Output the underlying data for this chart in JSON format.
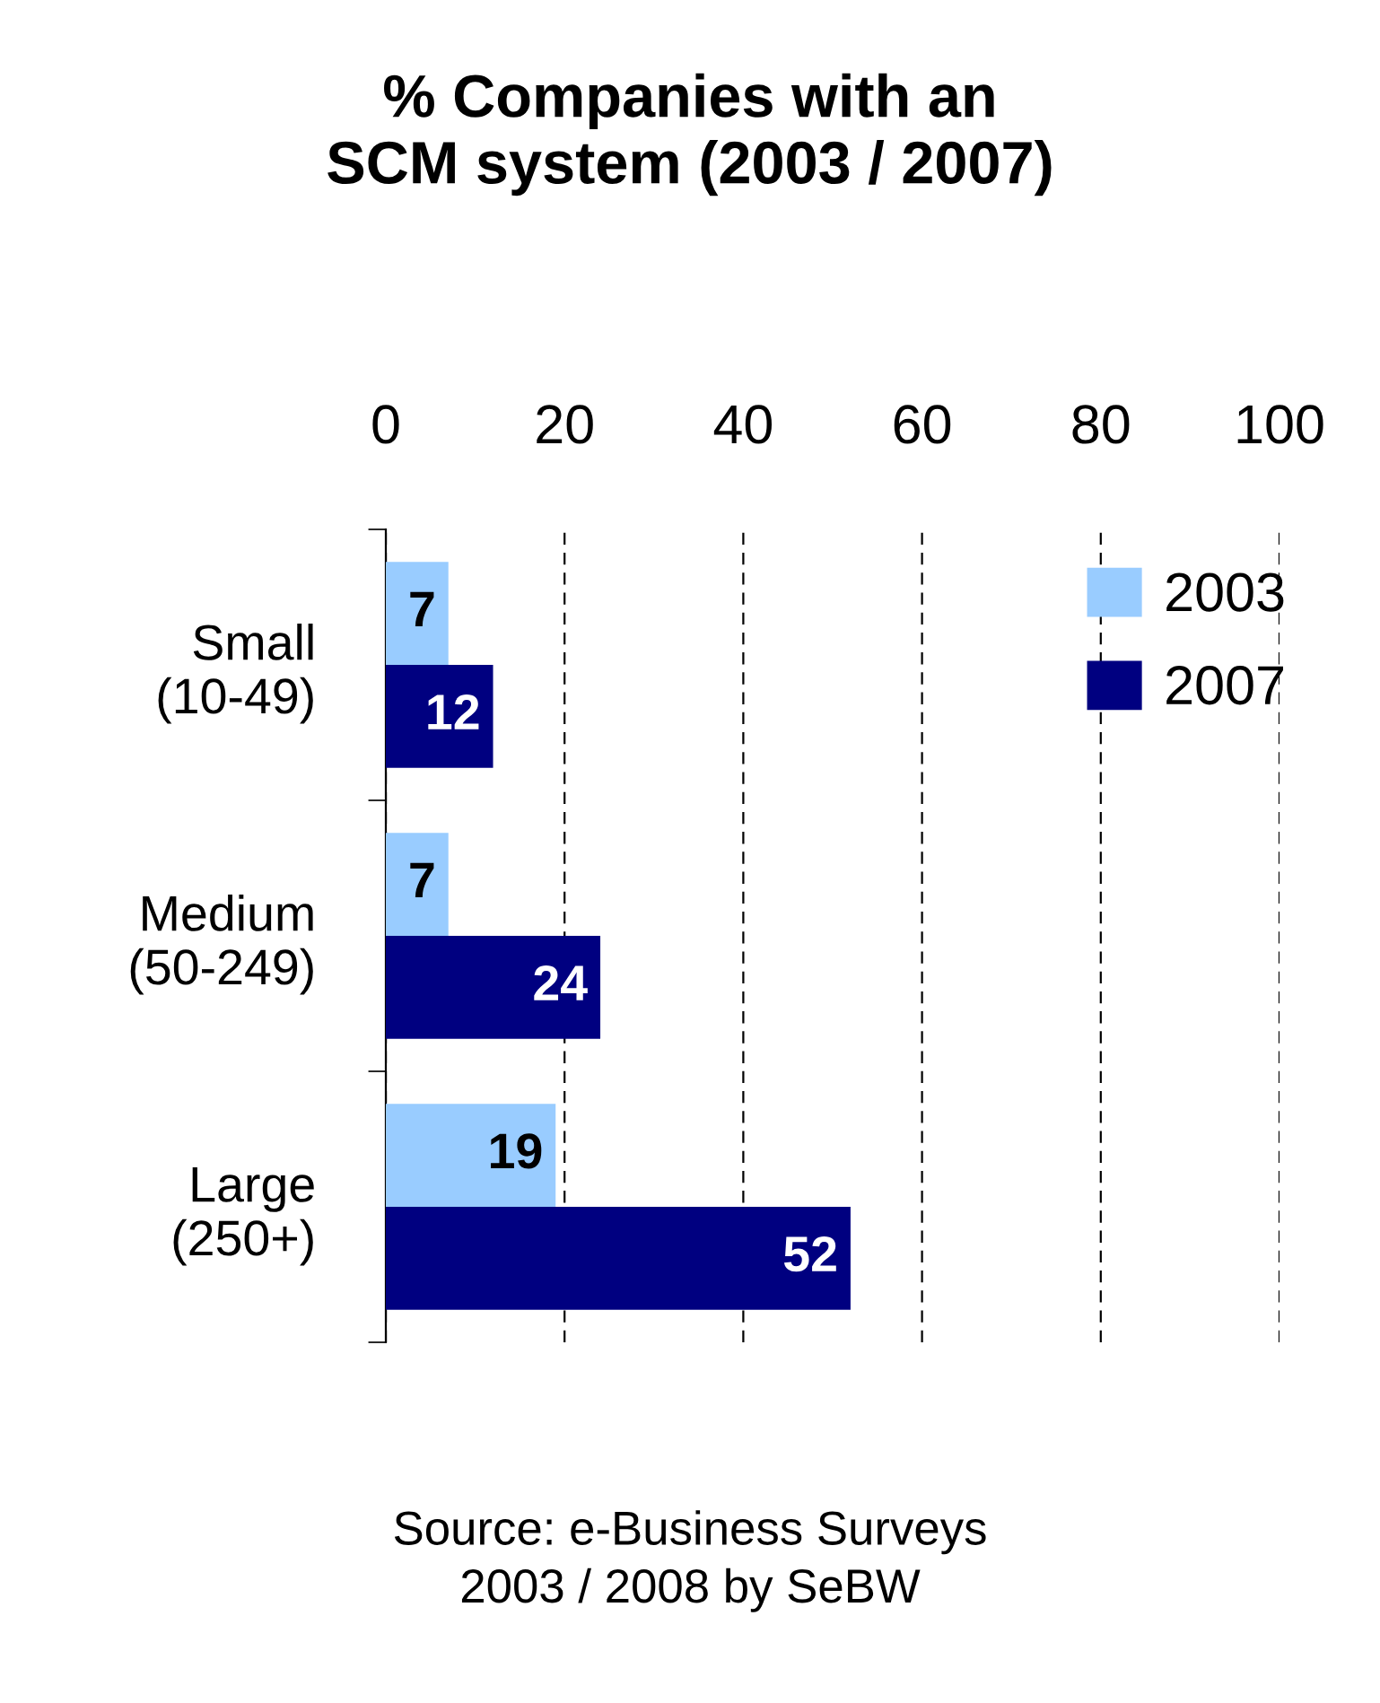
{
  "chart_data": {
    "type": "bar",
    "orientation": "horizontal",
    "title": "% Companies with an\nSCM system (2003 / 2007)",
    "categories": [
      "Small\n(10-49)",
      "Medium\n(50-249)",
      "Large\n(250+)"
    ],
    "series": [
      {
        "name": "2003",
        "color": "#99ccff",
        "values": [
          7,
          7,
          19
        ]
      },
      {
        "name": "2007",
        "color": "#000080",
        "values": [
          12,
          24,
          52
        ]
      }
    ],
    "xlim": [
      0,
      100
    ],
    "xticks": [
      0,
      20,
      40,
      60,
      80,
      100
    ],
    "grid": "x",
    "legend": "top right",
    "data_labels": true,
    "annotations": [
      "Source: e-Business Surveys\n2003 / 2008 by SeBW"
    ]
  }
}
